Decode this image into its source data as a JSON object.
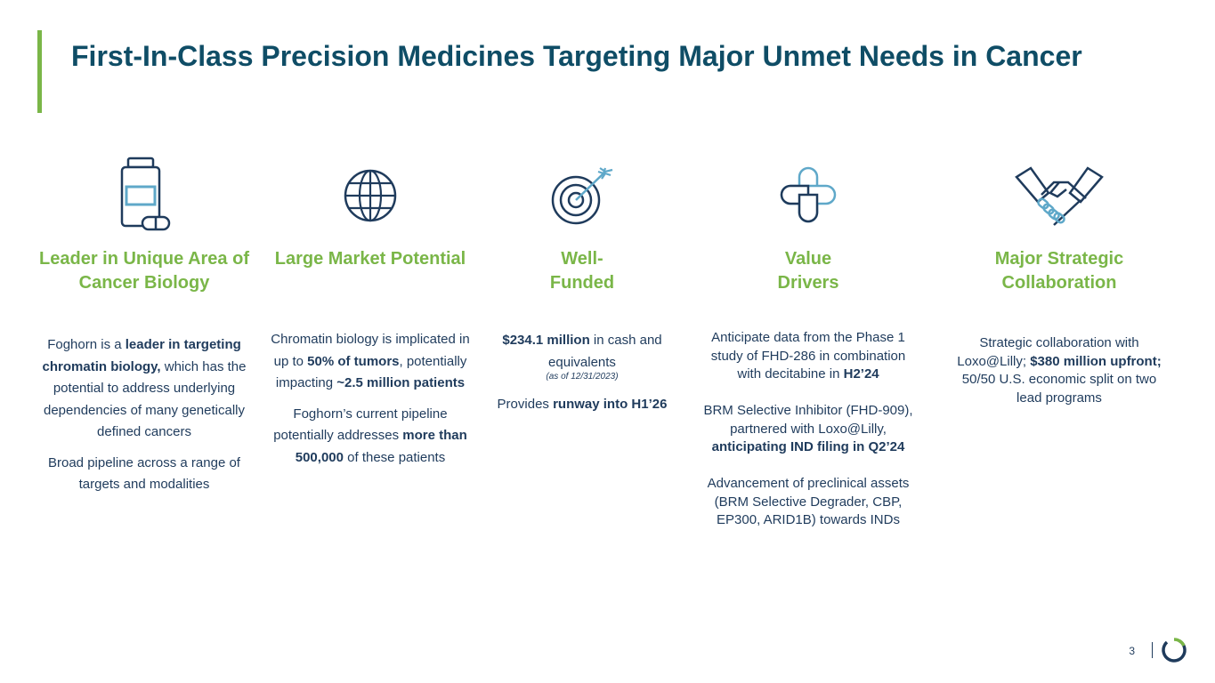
{
  "title": "First-In-Class Precision Medicines Targeting Major Unmet Needs in Cancer",
  "colors": {
    "accent_green": "#7ab648",
    "title_teal": "#0f4d66",
    "navy": "#1f3b5c",
    "light_blue": "#5fa8c9"
  },
  "columns": [
    {
      "icon": "medicine-bottle-icon",
      "heading": "Leader in Unique Area of Cancer Biology",
      "p1": {
        "a": "Foghorn is a ",
        "b": "leader in targeting chromatin biology,",
        "c": " which has the potential to address underlying dependencies of many genetically defined cancers"
      },
      "p2": "Broad pipeline across a range of targets and modalities"
    },
    {
      "icon": "globe-icon",
      "heading": "Large Market Potential",
      "p1": {
        "a": "Chromatin biology is implicated in up to ",
        "b": "50% of tumors",
        "c": ", potentially impacting ",
        "d": "~2.5 million patients"
      },
      "p2": {
        "a": "Foghorn’s current pipeline potentially addresses ",
        "b": "more than 500,000",
        "c": " of these patients"
      }
    },
    {
      "icon": "target-icon",
      "heading": "Well-Funded",
      "p1": {
        "b": "$234.1 million",
        "c": " in cash and equivalents"
      },
      "note": "(as of 12/31/2023)",
      "p2": {
        "a": "Provides ",
        "b": "runway into H1’26"
      }
    },
    {
      "icon": "pills-icon",
      "heading": "Value Drivers",
      "p1": {
        "a": "Anticipate data from the Phase 1 study of FHD-286 in combination with decitabine in ",
        "b": "H2’24"
      },
      "p2": {
        "a": "BRM Selective Inhibitor (FHD-909), partnered with Loxo@Lilly, ",
        "b": "anticipating IND filing in Q2’24"
      },
      "p3": "Advancement of preclinical assets (BRM Selective Degrader, CBP, EP300, ARID1B) towards INDs"
    },
    {
      "icon": "handshake-icon",
      "heading": "Major Strategic Collaboration",
      "p1": {
        "a": "Strategic collaboration with Loxo@Lilly; ",
        "b": "$380 million upfront;",
        "c": " 50/50 U.S. economic split on two lead programs"
      }
    }
  ],
  "footer": {
    "page_number": "3",
    "logo_icon": "foghorn-ring-logo"
  }
}
